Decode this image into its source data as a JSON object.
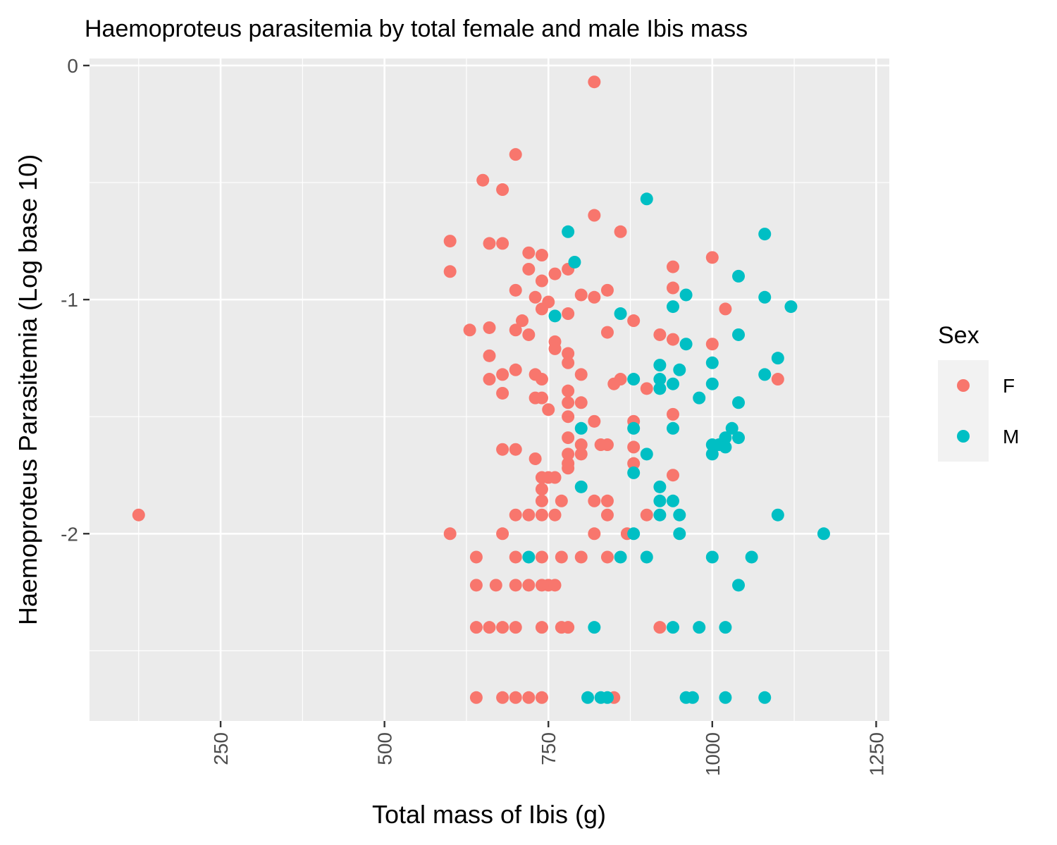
{
  "chart_data": {
    "type": "scatter",
    "title": "Haemoproteus parasitemia by total female and male Ibis mass",
    "xlabel": "Total mass of Ibis (g)",
    "ylabel": "Haemoproteus Parasitemia (Log base 10)",
    "xlim": [
      50,
      1270
    ],
    "ylim": [
      -2.8,
      0.03
    ],
    "x_ticks": [
      250,
      500,
      750,
      1000,
      1250
    ],
    "x_tick_labels": [
      "250",
      "500",
      "750",
      "1000",
      "1250"
    ],
    "y_ticks": [
      0,
      -1,
      -2
    ],
    "y_tick_labels": [
      "0",
      "-1",
      "-2"
    ],
    "grid": true,
    "legend": {
      "title": "Sex",
      "position": "right"
    },
    "series": [
      {
        "name": "F",
        "color": "#F8766D",
        "points": [
          [
            125,
            -1.92
          ],
          [
            600,
            -0.75
          ],
          [
            600,
            -0.88
          ],
          [
            600,
            -2.0
          ],
          [
            630,
            -1.13
          ],
          [
            640,
            -2.1
          ],
          [
            640,
            -2.22
          ],
          [
            640,
            -2.4
          ],
          [
            640,
            -2.7
          ],
          [
            650,
            -0.49
          ],
          [
            660,
            -0.76
          ],
          [
            660,
            -1.12
          ],
          [
            660,
            -1.24
          ],
          [
            660,
            -1.34
          ],
          [
            660,
            -2.4
          ],
          [
            670,
            -2.22
          ],
          [
            680,
            -0.53
          ],
          [
            680,
            -0.76
          ],
          [
            680,
            -1.32
          ],
          [
            680,
            -1.4
          ],
          [
            680,
            -1.64
          ],
          [
            680,
            -2.0
          ],
          [
            680,
            -2.4
          ],
          [
            680,
            -2.7
          ],
          [
            700,
            -0.38
          ],
          [
            700,
            -0.96
          ],
          [
            700,
            -1.13
          ],
          [
            700,
            -1.3
          ],
          [
            700,
            -1.64
          ],
          [
            700,
            -1.92
          ],
          [
            700,
            -2.1
          ],
          [
            700,
            -2.22
          ],
          [
            700,
            -2.4
          ],
          [
            700,
            -2.7
          ],
          [
            710,
            -1.09
          ],
          [
            720,
            -0.8
          ],
          [
            720,
            -0.87
          ],
          [
            720,
            -1.15
          ],
          [
            720,
            -1.92
          ],
          [
            720,
            -2.22
          ],
          [
            720,
            -2.7
          ],
          [
            730,
            -0.99
          ],
          [
            730,
            -1.32
          ],
          [
            730,
            -1.42
          ],
          [
            730,
            -1.68
          ],
          [
            740,
            -0.81
          ],
          [
            740,
            -0.92
          ],
          [
            740,
            -1.04
          ],
          [
            740,
            -1.34
          ],
          [
            740,
            -1.42
          ],
          [
            740,
            -1.76
          ],
          [
            740,
            -1.81
          ],
          [
            740,
            -1.86
          ],
          [
            740,
            -1.92
          ],
          [
            740,
            -2.1
          ],
          [
            740,
            -2.22
          ],
          [
            740,
            -2.4
          ],
          [
            740,
            -2.7
          ],
          [
            750,
            -1.01
          ],
          [
            750,
            -1.47
          ],
          [
            750,
            -1.76
          ],
          [
            750,
            -2.22
          ],
          [
            760,
            -0.89
          ],
          [
            760,
            -1.18
          ],
          [
            760,
            -1.21
          ],
          [
            760,
            -1.76
          ],
          [
            760,
            -1.92
          ],
          [
            760,
            -2.22
          ],
          [
            770,
            -1.86
          ],
          [
            770,
            -2.1
          ],
          [
            770,
            -2.4
          ],
          [
            780,
            -0.87
          ],
          [
            780,
            -1.06
          ],
          [
            780,
            -1.23
          ],
          [
            780,
            -1.27
          ],
          [
            780,
            -1.39
          ],
          [
            780,
            -1.44
          ],
          [
            780,
            -1.5
          ],
          [
            780,
            -1.59
          ],
          [
            780,
            -1.66
          ],
          [
            780,
            -1.7
          ],
          [
            780,
            -1.72
          ],
          [
            780,
            -2.4
          ],
          [
            800,
            -0.98
          ],
          [
            800,
            -1.32
          ],
          [
            800,
            -1.44
          ],
          [
            800,
            -1.62
          ],
          [
            800,
            -1.66
          ],
          [
            800,
            -2.1
          ],
          [
            820,
            -0.07
          ],
          [
            820,
            -0.64
          ],
          [
            820,
            -0.99
          ],
          [
            820,
            -1.52
          ],
          [
            820,
            -1.86
          ],
          [
            820,
            -2.0
          ],
          [
            830,
            -1.62
          ],
          [
            840,
            -0.96
          ],
          [
            840,
            -1.14
          ],
          [
            840,
            -1.62
          ],
          [
            840,
            -1.86
          ],
          [
            840,
            -1.92
          ],
          [
            840,
            -2.1
          ],
          [
            850,
            -1.36
          ],
          [
            850,
            -2.7
          ],
          [
            860,
            -0.71
          ],
          [
            860,
            -1.34
          ],
          [
            870,
            -2.0
          ],
          [
            880,
            -1.09
          ],
          [
            880,
            -1.52
          ],
          [
            880,
            -1.63
          ],
          [
            880,
            -1.7
          ],
          [
            900,
            -1.38
          ],
          [
            900,
            -1.92
          ],
          [
            920,
            -1.15
          ],
          [
            920,
            -2.4
          ],
          [
            940,
            -0.86
          ],
          [
            940,
            -0.95
          ],
          [
            940,
            -1.17
          ],
          [
            940,
            -1.49
          ],
          [
            940,
            -1.75
          ],
          [
            1000,
            -0.82
          ],
          [
            1000,
            -1.19
          ],
          [
            1020,
            -1.04
          ],
          [
            1100,
            -1.34
          ]
        ]
      },
      {
        "name": "M",
        "color": "#00BFC4",
        "points": [
          [
            720,
            -2.1
          ],
          [
            760,
            -1.07
          ],
          [
            780,
            -0.71
          ],
          [
            790,
            -0.84
          ],
          [
            800,
            -1.55
          ],
          [
            800,
            -1.8
          ],
          [
            810,
            -2.7
          ],
          [
            820,
            -2.4
          ],
          [
            830,
            -2.7
          ],
          [
            840,
            -2.7
          ],
          [
            860,
            -1.06
          ],
          [
            860,
            -2.1
          ],
          [
            880,
            -1.34
          ],
          [
            880,
            -1.55
          ],
          [
            880,
            -1.74
          ],
          [
            880,
            -2.0
          ],
          [
            900,
            -0.57
          ],
          [
            900,
            -1.66
          ],
          [
            900,
            -2.1
          ],
          [
            920,
            -1.28
          ],
          [
            920,
            -1.34
          ],
          [
            920,
            -1.38
          ],
          [
            920,
            -1.8
          ],
          [
            920,
            -1.86
          ],
          [
            920,
            -1.92
          ],
          [
            940,
            -1.03
          ],
          [
            940,
            -1.36
          ],
          [
            940,
            -1.55
          ],
          [
            940,
            -1.86
          ],
          [
            940,
            -2.4
          ],
          [
            950,
            -1.3
          ],
          [
            950,
            -1.92
          ],
          [
            950,
            -2.0
          ],
          [
            960,
            -0.98
          ],
          [
            960,
            -1.19
          ],
          [
            960,
            -2.7
          ],
          [
            970,
            -2.7
          ],
          [
            980,
            -1.42
          ],
          [
            980,
            -2.4
          ],
          [
            1000,
            -1.27
          ],
          [
            1000,
            -1.36
          ],
          [
            1000,
            -1.62
          ],
          [
            1000,
            -1.66
          ],
          [
            1000,
            -2.1
          ],
          [
            1010,
            -1.62
          ],
          [
            1020,
            -1.59
          ],
          [
            1020,
            -1.63
          ],
          [
            1020,
            -2.4
          ],
          [
            1020,
            -2.7
          ],
          [
            1030,
            -1.55
          ],
          [
            1040,
            -0.9
          ],
          [
            1040,
            -1.15
          ],
          [
            1040,
            -1.44
          ],
          [
            1040,
            -1.59
          ],
          [
            1040,
            -2.22
          ],
          [
            1060,
            -2.1
          ],
          [
            1080,
            -0.72
          ],
          [
            1080,
            -0.99
          ],
          [
            1080,
            -1.32
          ],
          [
            1080,
            -2.7
          ],
          [
            1100,
            -1.25
          ],
          [
            1100,
            -1.92
          ],
          [
            1120,
            -1.03
          ],
          [
            1170,
            -2.0
          ]
        ]
      }
    ]
  }
}
